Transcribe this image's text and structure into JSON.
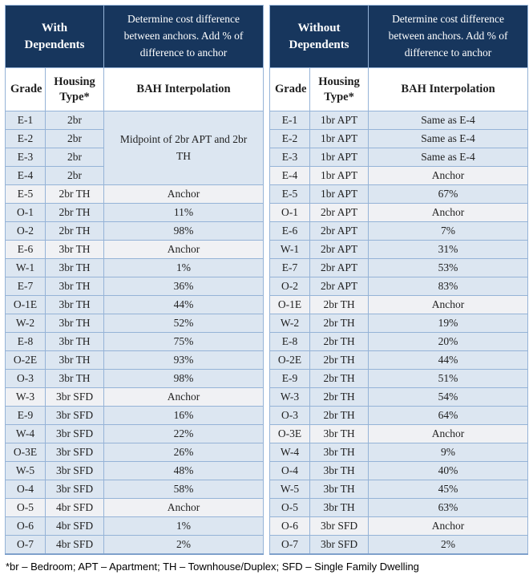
{
  "footnote": "*br – Bedroom; APT – Apartment; TH – Townhouse/Duplex; SFD – Single Family Dwelling",
  "colors": {
    "header_bg": "#17365D",
    "header_text": "#FFFFFF",
    "row_blue": "#DCE6F1",
    "row_anchor": "#F0F1F4",
    "grid": "#95B3D7",
    "grid_strong": "#7FA1CB",
    "text": "#1F1F1F"
  },
  "tables": [
    {
      "title": "With\nDependents",
      "instruction": "Determine cost difference between anchors. Add % of difference to anchor",
      "columns": [
        "Grade",
        "Housing Type*",
        "BAH Interpolation"
      ],
      "merged_cell": {
        "text": "Midpoint of 2br APT and 2br TH",
        "start_row": 0,
        "row_span": 4
      },
      "rows": [
        {
          "grade": "E-1",
          "housing": "2br",
          "bah": null,
          "anchor": false
        },
        {
          "grade": "E-2",
          "housing": "2br",
          "bah": null,
          "anchor": false
        },
        {
          "grade": "E-3",
          "housing": "2br",
          "bah": null,
          "anchor": false
        },
        {
          "grade": "E-4",
          "housing": "2br",
          "bah": null,
          "anchor": false
        },
        {
          "grade": "E-5",
          "housing": "2br TH",
          "bah": "Anchor",
          "anchor": true
        },
        {
          "grade": "O-1",
          "housing": "2br TH",
          "bah": "11%",
          "anchor": false
        },
        {
          "grade": "O-2",
          "housing": "2br TH",
          "bah": "98%",
          "anchor": false
        },
        {
          "grade": "E-6",
          "housing": "3br TH",
          "bah": "Anchor",
          "anchor": true
        },
        {
          "grade": "W-1",
          "housing": "3br TH",
          "bah": "1%",
          "anchor": false
        },
        {
          "grade": "E-7",
          "housing": "3br TH",
          "bah": "36%",
          "anchor": false
        },
        {
          "grade": "O-1E",
          "housing": "3br TH",
          "bah": "44%",
          "anchor": false
        },
        {
          "grade": "W-2",
          "housing": "3br TH",
          "bah": "52%",
          "anchor": false
        },
        {
          "grade": "E-8",
          "housing": "3br TH",
          "bah": "75%",
          "anchor": false
        },
        {
          "grade": "O-2E",
          "housing": "3br TH",
          "bah": "93%",
          "anchor": false
        },
        {
          "grade": "O-3",
          "housing": "3br TH",
          "bah": "98%",
          "anchor": false
        },
        {
          "grade": "W-3",
          "housing": "3br SFD",
          "bah": "Anchor",
          "anchor": true
        },
        {
          "grade": "E-9",
          "housing": "3br SFD",
          "bah": "16%",
          "anchor": false
        },
        {
          "grade": "W-4",
          "housing": "3br SFD",
          "bah": "22%",
          "anchor": false
        },
        {
          "grade": "O-3E",
          "housing": "3br SFD",
          "bah": "26%",
          "anchor": false
        },
        {
          "grade": "W-5",
          "housing": "3br SFD",
          "bah": "48%",
          "anchor": false
        },
        {
          "grade": "O-4",
          "housing": "3br SFD",
          "bah": "58%",
          "anchor": false
        },
        {
          "grade": "O-5",
          "housing": "4br SFD",
          "bah": "Anchor",
          "anchor": true
        },
        {
          "grade": "O-6",
          "housing": "4br SFD",
          "bah": "1%",
          "anchor": false
        },
        {
          "grade": "O-7",
          "housing": "4br SFD",
          "bah": "2%",
          "anchor": false
        }
      ]
    },
    {
      "title": "Without\nDependents",
      "instruction": "Determine cost difference between anchors.  Add % of difference to anchor",
      "columns": [
        "Grade",
        "Housing Type*",
        "BAH Interpolation"
      ],
      "merged_cell": null,
      "rows": [
        {
          "grade": "E-1",
          "housing": "1br APT",
          "bah": "Same as E-4",
          "anchor": false
        },
        {
          "grade": "E-2",
          "housing": "1br APT",
          "bah": "Same as E-4",
          "anchor": false
        },
        {
          "grade": "E-3",
          "housing": "1br APT",
          "bah": "Same as E-4",
          "anchor": false
        },
        {
          "grade": "E-4",
          "housing": "1br APT",
          "bah": "Anchor",
          "anchor": true
        },
        {
          "grade": "E-5",
          "housing": "1br APT",
          "bah": "67%",
          "anchor": false
        },
        {
          "grade": "O-1",
          "housing": "2br APT",
          "bah": "Anchor",
          "anchor": true
        },
        {
          "grade": "E-6",
          "housing": "2br APT",
          "bah": "7%",
          "anchor": false
        },
        {
          "grade": "W-1",
          "housing": "2br APT",
          "bah": "31%",
          "anchor": false
        },
        {
          "grade": "E-7",
          "housing": "2br APT",
          "bah": "53%",
          "anchor": false
        },
        {
          "grade": "O-2",
          "housing": "2br APT",
          "bah": "83%",
          "anchor": false
        },
        {
          "grade": "O-1E",
          "housing": "2br TH",
          "bah": "Anchor",
          "anchor": true
        },
        {
          "grade": "W-2",
          "housing": "2br TH",
          "bah": "19%",
          "anchor": false
        },
        {
          "grade": "E-8",
          "housing": "2br TH",
          "bah": "20%",
          "anchor": false
        },
        {
          "grade": "O-2E",
          "housing": "2br TH",
          "bah": "44%",
          "anchor": false
        },
        {
          "grade": "E-9",
          "housing": "2br TH",
          "bah": "51%",
          "anchor": false
        },
        {
          "grade": "W-3",
          "housing": "2br TH",
          "bah": "54%",
          "anchor": false
        },
        {
          "grade": "O-3",
          "housing": "2br TH",
          "bah": "64%",
          "anchor": false
        },
        {
          "grade": "O-3E",
          "housing": "3br TH",
          "bah": "Anchor",
          "anchor": true
        },
        {
          "grade": "W-4",
          "housing": "3br TH",
          "bah": "9%",
          "anchor": false
        },
        {
          "grade": "O-4",
          "housing": "3br TH",
          "bah": "40%",
          "anchor": false
        },
        {
          "grade": "W-5",
          "housing": "3br TH",
          "bah": "45%",
          "anchor": false
        },
        {
          "grade": "O-5",
          "housing": "3br TH",
          "bah": "63%",
          "anchor": false
        },
        {
          "grade": "O-6",
          "housing": "3br SFD",
          "bah": "Anchor",
          "anchor": true
        },
        {
          "grade": "O-7",
          "housing": "3br SFD",
          "bah": "2%",
          "anchor": false
        }
      ]
    }
  ]
}
